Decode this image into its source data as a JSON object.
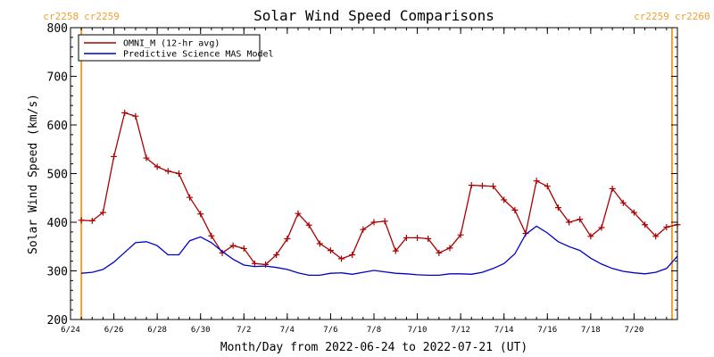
{
  "chart_data": {
    "type": "line",
    "title": "Solar Wind Speed Comparisons",
    "xlabel": "Month/Day from 2022-06-24 to 2022-07-21 (UT)",
    "ylabel": "Solar Wind Speed (km/s)",
    "ylim": [
      200,
      800
    ],
    "yticks": [
      200,
      300,
      400,
      500,
      600,
      700,
      800
    ],
    "xlim": [
      "2022-06-24",
      "2022-07-22"
    ],
    "xticks": [
      {
        "date": "2022-06-24",
        "label": "6/24"
      },
      {
        "date": "2022-06-26",
        "label": "6/26"
      },
      {
        "date": "2022-06-28",
        "label": "6/28"
      },
      {
        "date": "2022-06-30",
        "label": "6/30"
      },
      {
        "date": "2022-07-02",
        "label": "7/2"
      },
      {
        "date": "2022-07-04",
        "label": "7/4"
      },
      {
        "date": "2022-07-06",
        "label": "7/6"
      },
      {
        "date": "2022-07-08",
        "label": "7/8"
      },
      {
        "date": "2022-07-10",
        "label": "7/10"
      },
      {
        "date": "2022-07-12",
        "label": "7/12"
      },
      {
        "date": "2022-07-14",
        "label": "7/14"
      },
      {
        "date": "2022-07-16",
        "label": "7/16"
      },
      {
        "date": "2022-07-18",
        "label": "7/18"
      },
      {
        "date": "2022-07-20",
        "label": "7/20"
      }
    ],
    "legend_placement": "top-left",
    "carrington_markers": [
      {
        "date": "2022-06-24 12:00",
        "label_left": "cr2258",
        "label_right": "cr2259",
        "color": "#f0a030"
      },
      {
        "date": "2022-07-21 18:00",
        "label_left": "cr2259",
        "label_right": "cr2260",
        "color": "#f0a030"
      }
    ],
    "series": [
      {
        "name": "OMNI_M (12-hr avg)",
        "color": "#aa0000",
        "markers": true,
        "x": [
          "2022-06-24 12:00",
          "2022-06-25 00:00",
          "2022-06-25 12:00",
          "2022-06-26 00:00",
          "2022-06-26 12:00",
          "2022-06-27 00:00",
          "2022-06-27 12:00",
          "2022-06-28 00:00",
          "2022-06-28 12:00",
          "2022-06-29 00:00",
          "2022-06-29 12:00",
          "2022-06-30 00:00",
          "2022-06-30 12:00",
          "2022-07-01 00:00",
          "2022-07-01 12:00",
          "2022-07-02 00:00",
          "2022-07-02 12:00",
          "2022-07-03 00:00",
          "2022-07-03 12:00",
          "2022-07-04 00:00",
          "2022-07-04 12:00",
          "2022-07-05 00:00",
          "2022-07-05 12:00",
          "2022-07-06 00:00",
          "2022-07-06 12:00",
          "2022-07-07 00:00",
          "2022-07-07 12:00",
          "2022-07-08 00:00",
          "2022-07-08 12:00",
          "2022-07-09 00:00",
          "2022-07-09 12:00",
          "2022-07-10 00:00",
          "2022-07-10 12:00",
          "2022-07-11 00:00",
          "2022-07-11 12:00",
          "2022-07-12 00:00",
          "2022-07-12 12:00",
          "2022-07-13 00:00",
          "2022-07-13 12:00",
          "2022-07-14 00:00",
          "2022-07-14 12:00",
          "2022-07-15 00:00",
          "2022-07-15 12:00",
          "2022-07-16 00:00",
          "2022-07-16 12:00",
          "2022-07-17 00:00",
          "2022-07-17 12:00",
          "2022-07-18 00:00",
          "2022-07-18 12:00",
          "2022-07-19 00:00",
          "2022-07-19 12:00",
          "2022-07-20 00:00",
          "2022-07-20 12:00",
          "2022-07-21 00:00",
          "2022-07-21 12:00",
          "2022-07-22 00:00"
        ],
        "y": [
          404,
          403,
          420,
          535,
          625,
          618,
          532,
          514,
          505,
          500,
          451,
          417,
          372,
          337,
          352,
          346,
          315,
          313,
          333,
          366,
          418,
          394,
          356,
          342,
          325,
          333,
          385,
          400,
          402,
          341,
          368,
          368,
          366,
          337,
          347,
          374,
          476,
          475,
          474,
          446,
          425,
          377,
          485,
          474,
          430,
          400,
          406,
          371,
          389,
          469,
          440,
          420,
          395,
          371,
          390,
          395
        ]
      },
      {
        "name": "Predictive Science MAS Model",
        "color": "#0000cc",
        "markers": false,
        "x": [
          "2022-06-24 12:00",
          "2022-06-25 00:00",
          "2022-06-25 12:00",
          "2022-06-26 00:00",
          "2022-06-26 12:00",
          "2022-06-27 00:00",
          "2022-06-27 12:00",
          "2022-06-28 00:00",
          "2022-06-28 12:00",
          "2022-06-29 00:00",
          "2022-06-29 12:00",
          "2022-06-30 00:00",
          "2022-06-30 12:00",
          "2022-07-01 00:00",
          "2022-07-01 12:00",
          "2022-07-02 00:00",
          "2022-07-02 12:00",
          "2022-07-03 00:00",
          "2022-07-03 12:00",
          "2022-07-04 00:00",
          "2022-07-04 12:00",
          "2022-07-05 00:00",
          "2022-07-05 12:00",
          "2022-07-06 00:00",
          "2022-07-06 12:00",
          "2022-07-07 00:00",
          "2022-07-07 12:00",
          "2022-07-08 00:00",
          "2022-07-08 12:00",
          "2022-07-09 00:00",
          "2022-07-09 12:00",
          "2022-07-10 00:00",
          "2022-07-10 12:00",
          "2022-07-11 00:00",
          "2022-07-11 12:00",
          "2022-07-12 00:00",
          "2022-07-12 12:00",
          "2022-07-13 00:00",
          "2022-07-13 12:00",
          "2022-07-14 00:00",
          "2022-07-14 12:00",
          "2022-07-15 00:00",
          "2022-07-15 12:00",
          "2022-07-16 00:00",
          "2022-07-16 12:00",
          "2022-07-17 00:00",
          "2022-07-17 12:00",
          "2022-07-18 00:00",
          "2022-07-18 12:00",
          "2022-07-19 00:00",
          "2022-07-19 12:00",
          "2022-07-20 00:00",
          "2022-07-20 12:00",
          "2022-07-21 00:00",
          "2022-07-21 12:00",
          "2022-07-22 00:00"
        ],
        "y": [
          295,
          297,
          303,
          318,
          338,
          358,
          360,
          352,
          333,
          333,
          362,
          370,
          358,
          340,
          324,
          312,
          309,
          310,
          307,
          303,
          296,
          291,
          291,
          295,
          296,
          293,
          297,
          301,
          298,
          295,
          294,
          292,
          291,
          291,
          294,
          294,
          293,
          297,
          305,
          315,
          335,
          375,
          392,
          378,
          360,
          350,
          342,
          326,
          314,
          305,
          299,
          296,
          294,
          297,
          305,
          330
        ]
      }
    ]
  }
}
